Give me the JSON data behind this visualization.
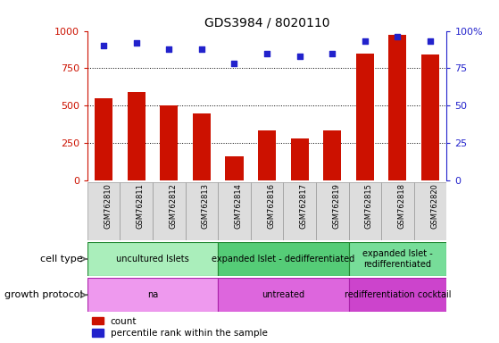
{
  "title": "GDS3984 / 8020110",
  "samples": [
    "GSM762810",
    "GSM762811",
    "GSM762812",
    "GSM762813",
    "GSM762814",
    "GSM762816",
    "GSM762817",
    "GSM762819",
    "GSM762815",
    "GSM762818",
    "GSM762820"
  ],
  "counts": [
    550,
    590,
    500,
    445,
    160,
    335,
    280,
    335,
    850,
    975,
    840
  ],
  "percentile_ranks": [
    90,
    92,
    88,
    88,
    78,
    85,
    83,
    85,
    93,
    96,
    93
  ],
  "cell_types": [
    {
      "label": "uncultured Islets",
      "start": 0,
      "end": 3,
      "color": "#aaeebb"
    },
    {
      "label": "expanded Islet - dedifferentiated",
      "start": 4,
      "end": 7,
      "color": "#55cc77"
    },
    {
      "label": "expanded Islet -\nredifferentiated",
      "start": 8,
      "end": 10,
      "color": "#77dd99"
    }
  ],
  "growth_protocols": [
    {
      "label": "na",
      "start": 0,
      "end": 3,
      "color": "#ee99ee"
    },
    {
      "label": "untreated",
      "start": 4,
      "end": 7,
      "color": "#dd66dd"
    },
    {
      "label": "redifferentiation cocktail",
      "start": 8,
      "end": 10,
      "color": "#cc44cc"
    }
  ],
  "bar_color": "#cc1100",
  "dot_color": "#2222cc",
  "ylim_left": [
    0,
    1000
  ],
  "ylim_right": [
    0,
    100
  ],
  "yticks_left": [
    0,
    250,
    500,
    750,
    1000
  ],
  "yticks_right": [
    0,
    25,
    50,
    75,
    100
  ],
  "cell_type_label": "cell type",
  "growth_protocol_label": "growth protocol",
  "legend_count_label": "count",
  "legend_percentile_label": "percentile rank within the sample"
}
